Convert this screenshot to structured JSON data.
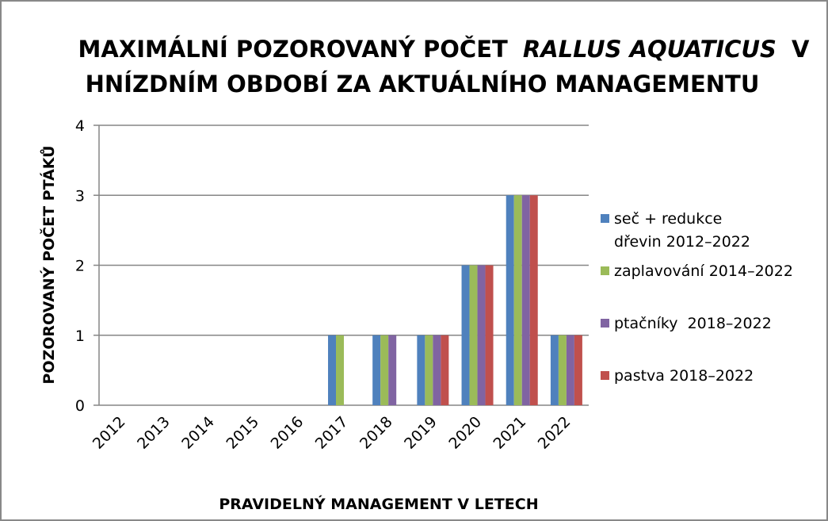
{
  "chart_data": {
    "type": "bar",
    "title": {
      "line1": [
        "MAXIMÁLNÍ POZOROVANÝ POČET",
        "RALLUS AQUATICUS",
        "V"
      ],
      "line2": "HNÍZDNÍM OBDOBÍ ZA AKTUÁLNÍHO MANAGEMENTU"
    },
    "xlabel": "PRAVIDELNÝ MANAGEMENT V LETECH",
    "ylabel": "POZOROVANÝ POČET PTÁKŮ",
    "categories": [
      "2012",
      "2013",
      "2014",
      "2015",
      "2016",
      "2017",
      "2018",
      "2019",
      "2020",
      "2021",
      "2022"
    ],
    "series": [
      {
        "name": "seč + redukce dřevin 2012–2022",
        "color": "#4f81bd",
        "values": [
          0,
          0,
          0,
          0,
          0,
          1,
          1,
          1,
          2,
          3,
          1
        ]
      },
      {
        "name": "zaplavování 2014–2022",
        "color": "#9bbb59",
        "values": [
          0,
          0,
          0,
          0,
          0,
          1,
          1,
          1,
          2,
          3,
          1
        ]
      },
      {
        "name": "ptačníky  2018–2022",
        "color": "#8064a2",
        "values": [
          0,
          0,
          0,
          0,
          0,
          0,
          1,
          1,
          2,
          3,
          1
        ]
      },
      {
        "name": "pastva 2018–2022",
        "color": "#c0504d",
        "values": [
          0,
          0,
          0,
          0,
          0,
          0,
          0,
          1,
          2,
          3,
          1
        ]
      }
    ],
    "ylim": [
      0,
      4
    ],
    "yticks": [
      0,
      1,
      2,
      3,
      4
    ],
    "grid": true,
    "legend": "right"
  }
}
